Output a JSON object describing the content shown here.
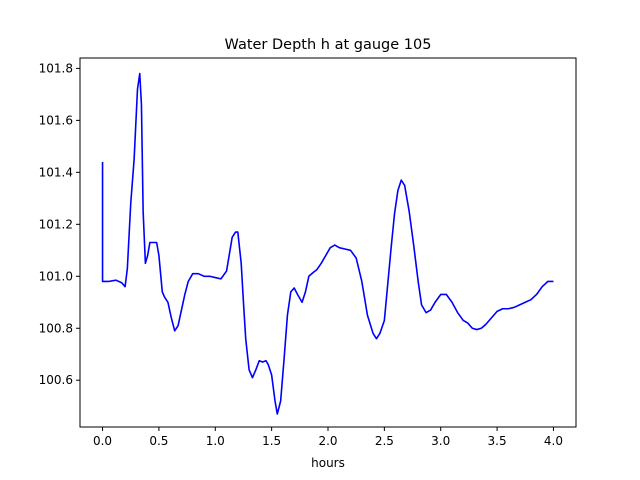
{
  "chart_data": {
    "type": "line",
    "title": "Water Depth h at gauge 105",
    "xlabel": "hours",
    "ylabel": "",
    "xlim": [
      -0.2,
      4.2
    ],
    "ylim": [
      100.42,
      101.84
    ],
    "grid": false,
    "xticks": [
      0.0,
      0.5,
      1.0,
      1.5,
      2.0,
      2.5,
      3.0,
      3.5,
      4.0
    ],
    "xtick_labels": [
      "0.0",
      "0.5",
      "1.0",
      "1.5",
      "2.0",
      "2.5",
      "3.0",
      "3.5",
      "4.0"
    ],
    "yticks": [
      100.6,
      100.8,
      101.0,
      101.2,
      101.4,
      101.6,
      101.8
    ],
    "ytick_labels": [
      "100.6",
      "100.8",
      "101.0",
      "101.2",
      "101.4",
      "101.6",
      "101.8"
    ],
    "series": [
      {
        "color": "#0000ff",
        "x": [
          0.0,
          0.0,
          0.005,
          0.05,
          0.12,
          0.17,
          0.2,
          0.22,
          0.25,
          0.28,
          0.31,
          0.33,
          0.345,
          0.36,
          0.38,
          0.4,
          0.42,
          0.45,
          0.48,
          0.5,
          0.53,
          0.55,
          0.58,
          0.61,
          0.64,
          0.67,
          0.7,
          0.73,
          0.76,
          0.8,
          0.85,
          0.9,
          0.95,
          1.0,
          1.05,
          1.1,
          1.15,
          1.18,
          1.2,
          1.23,
          1.25,
          1.27,
          1.3,
          1.33,
          1.36,
          1.39,
          1.42,
          1.45,
          1.47,
          1.5,
          1.53,
          1.55,
          1.58,
          1.61,
          1.64,
          1.67,
          1.7,
          1.73,
          1.77,
          1.8,
          1.83,
          1.87,
          1.9,
          1.94,
          1.98,
          2.02,
          2.06,
          2.1,
          2.15,
          2.2,
          2.25,
          2.3,
          2.35,
          2.4,
          2.43,
          2.46,
          2.5,
          2.53,
          2.56,
          2.59,
          2.62,
          2.65,
          2.68,
          2.72,
          2.76,
          2.8,
          2.83,
          2.87,
          2.91,
          2.95,
          3.0,
          3.05,
          3.1,
          3.15,
          3.2,
          3.24,
          3.28,
          3.32,
          3.36,
          3.4,
          3.45,
          3.5,
          3.55,
          3.6,
          3.65,
          3.7,
          3.75,
          3.8,
          3.85,
          3.9,
          3.95,
          4.0
        ],
        "y": [
          101.44,
          100.98,
          100.98,
          100.98,
          100.985,
          100.975,
          100.96,
          101.03,
          101.28,
          101.45,
          101.72,
          101.78,
          101.66,
          101.25,
          101.05,
          101.08,
          101.13,
          101.13,
          101.13,
          101.08,
          100.94,
          100.92,
          100.9,
          100.84,
          100.79,
          100.81,
          100.87,
          100.93,
          100.98,
          101.01,
          101.01,
          101.0,
          101.0,
          100.995,
          100.99,
          101.02,
          101.15,
          101.17,
          101.17,
          101.05,
          100.9,
          100.76,
          100.64,
          100.61,
          100.64,
          100.675,
          100.67,
          100.675,
          100.66,
          100.62,
          100.52,
          100.47,
          100.52,
          100.68,
          100.85,
          100.94,
          100.955,
          100.93,
          100.9,
          100.94,
          101.0,
          101.015,
          101.025,
          101.05,
          101.08,
          101.11,
          101.12,
          101.11,
          101.105,
          101.1,
          101.07,
          100.98,
          100.85,
          100.78,
          100.76,
          100.78,
          100.83,
          100.97,
          101.11,
          101.24,
          101.33,
          101.37,
          101.35,
          101.25,
          101.12,
          100.98,
          100.89,
          100.86,
          100.87,
          100.9,
          100.93,
          100.93,
          100.9,
          100.86,
          100.83,
          100.82,
          100.8,
          100.795,
          100.8,
          100.815,
          100.84,
          100.865,
          100.875,
          100.875,
          100.88,
          100.89,
          100.9,
          100.91,
          100.93,
          100.96,
          100.98,
          100.98
        ]
      }
    ]
  }
}
